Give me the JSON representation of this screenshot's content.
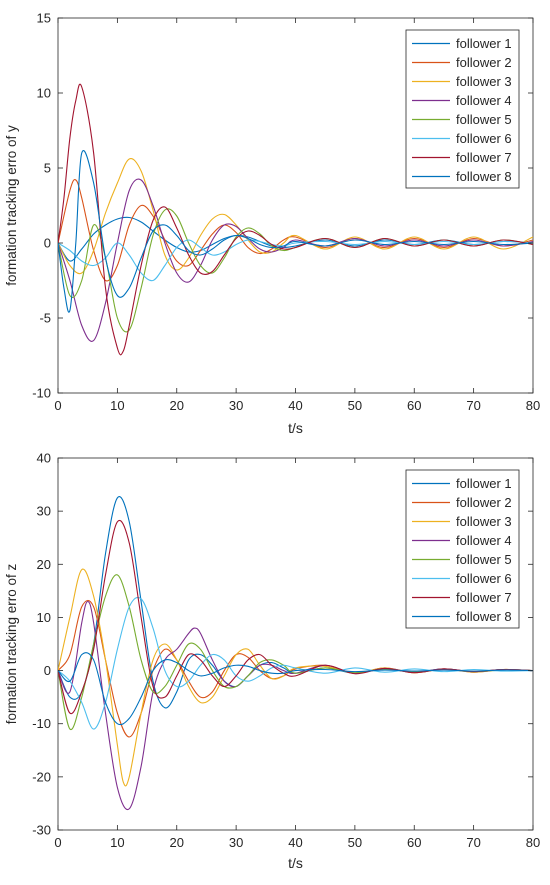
{
  "chart_data": [
    {
      "type": "line",
      "title": "",
      "xlabel": "t/s",
      "ylabel": "formation tracking erro of y",
      "xlim": [
        0,
        80
      ],
      "ylim": [
        -10,
        15
      ],
      "xticks": [
        0,
        10,
        20,
        30,
        40,
        50,
        60,
        70,
        80
      ],
      "yticks": [
        -10,
        -5,
        0,
        5,
        10,
        15
      ],
      "grid": false,
      "legend_position": "top-right",
      "series": [
        {
          "name": "follower 1",
          "color": "#0072BD",
          "x": [
            0,
            2,
            4,
            6,
            8,
            10,
            12,
            14,
            16,
            18,
            20,
            22,
            24,
            26,
            28,
            30,
            32,
            34,
            36,
            38,
            40,
            45,
            50,
            55,
            60,
            65,
            70,
            75,
            80
          ],
          "y": [
            0,
            -1.2,
            -0.4,
            0.6,
            1.2,
            1.6,
            1.7,
            1.4,
            0.8,
            0.2,
            -0.3,
            -0.6,
            -0.5,
            -0.1,
            0.3,
            0.5,
            0.4,
            0.1,
            -0.2,
            -0.3,
            -0.2,
            0.2,
            -0.2,
            0.2,
            -0.1,
            0.2,
            -0.1,
            0.1,
            0
          ]
        },
        {
          "name": "follower 2",
          "color": "#D95319",
          "x": [
            0,
            2,
            3,
            4,
            6,
            8,
            10,
            12,
            14,
            16,
            18,
            20,
            22,
            24,
            26,
            28,
            30,
            32,
            34,
            36,
            38,
            40,
            45,
            50,
            55,
            60,
            65,
            70,
            75,
            80
          ],
          "y": [
            0,
            3.5,
            4.2,
            3,
            -0.5,
            -2.5,
            -1.5,
            1.2,
            2.5,
            1.8,
            0.2,
            -1.2,
            -1.5,
            -0.5,
            0.6,
            1.2,
            0.7,
            -0.3,
            -0.7,
            -0.4,
            0.2,
            0.4,
            -0.3,
            0.3,
            -0.3,
            0.3,
            -0.3,
            0.3,
            -0.2,
            0.2
          ]
        },
        {
          "name": "follower 3",
          "color": "#EDB120",
          "x": [
            0,
            2,
            4,
            6,
            8,
            10,
            12,
            14,
            16,
            18,
            20,
            22,
            24,
            26,
            28,
            30,
            32,
            34,
            36,
            38,
            40,
            45,
            50,
            55,
            60,
            65,
            70,
            75,
            80
          ],
          "y": [
            0,
            -1.5,
            -2,
            -0.5,
            2,
            4,
            5.6,
            4.8,
            2.2,
            -0.8,
            -1.8,
            -1,
            0.5,
            1.6,
            1.9,
            1.2,
            0.2,
            -0.6,
            -0.6,
            0,
            0.5,
            -0.4,
            0.4,
            -0.4,
            0.4,
            -0.4,
            0.4,
            -0.4,
            0.4
          ]
        },
        {
          "name": "follower 4",
          "color": "#7E2F8E",
          "x": [
            0,
            2,
            4,
            6,
            8,
            10,
            12,
            14,
            16,
            18,
            20,
            22,
            24,
            26,
            28,
            30,
            32,
            34,
            36,
            38,
            40,
            45,
            50,
            55,
            60,
            65,
            70,
            75,
            80
          ],
          "y": [
            0,
            -2.5,
            -5.5,
            -6.5,
            -4,
            0,
            3.5,
            4.2,
            2.5,
            0,
            -2,
            -2.6,
            -1.5,
            0.2,
            1.2,
            1.1,
            0.3,
            -0.4,
            -0.6,
            -0.3,
            0.2,
            -0.2,
            0.3,
            -0.2,
            0.2,
            -0.2,
            0.2,
            -0.2,
            0.1
          ]
        },
        {
          "name": "follower 5",
          "color": "#77AC30",
          "x": [
            0,
            2,
            4,
            6,
            8,
            10,
            12,
            14,
            16,
            18,
            20,
            22,
            24,
            26,
            28,
            30,
            32,
            34,
            36,
            38,
            40,
            45,
            50,
            55,
            60,
            65,
            70,
            75,
            80
          ],
          "y": [
            0,
            -3.5,
            -2.5,
            1.2,
            -1,
            -5,
            -5.8,
            -3,
            0.5,
            2.2,
            1.8,
            0,
            -1.5,
            -2,
            -1,
            0.4,
            1,
            0.6,
            -0.2,
            -0.5,
            -0.3,
            0.3,
            -0.3,
            0.3,
            -0.2,
            0.2,
            -0.2,
            0.2,
            -0.1
          ]
        },
        {
          "name": "follower 6",
          "color": "#4DBEEE",
          "x": [
            0,
            2,
            4,
            6,
            8,
            10,
            12,
            14,
            16,
            18,
            20,
            22,
            24,
            26,
            28,
            30,
            32,
            34,
            36,
            38,
            40,
            45,
            50,
            55,
            60,
            65,
            70,
            75,
            80
          ],
          "y": [
            0,
            -0.5,
            -1.2,
            -1.5,
            -1,
            0,
            -0.8,
            -2,
            -2.5,
            -1.5,
            -0.3,
            0.2,
            -0.3,
            -0.8,
            -0.6,
            -0.1,
            0.2,
            0.1,
            -0.1,
            -0.2,
            0,
            0.1,
            -0.1,
            0.1,
            -0.1,
            0.1,
            -0.1,
            0.1,
            0
          ]
        },
        {
          "name": "follower 7",
          "color": "#A2142F",
          "x": [
            0,
            1,
            2,
            3,
            4,
            6,
            8,
            10,
            11,
            12,
            14,
            16,
            18,
            20,
            22,
            24,
            26,
            28,
            30,
            32,
            34,
            36,
            38,
            40,
            45,
            50,
            55,
            60,
            65,
            70,
            75,
            80
          ],
          "y": [
            0,
            3,
            7,
            9.5,
            10.4,
            6,
            -3,
            -7,
            -7.2,
            -5.5,
            -1.5,
            1.5,
            2.4,
            1,
            -0.8,
            -2,
            -1.9,
            -0.8,
            0.3,
            0.8,
            0.5,
            -0.1,
            -0.4,
            -0.3,
            0.3,
            -0.3,
            0.3,
            -0.2,
            0.2,
            -0.2,
            0.2,
            -0.1
          ]
        },
        {
          "name": "follower 8",
          "color": "#0072BD",
          "x": [
            0,
            1,
            2,
            3,
            4,
            6,
            8,
            10,
            12,
            14,
            16,
            18,
            20,
            22,
            24,
            26,
            28,
            30,
            32,
            34,
            36,
            38,
            40,
            45,
            50,
            55,
            60,
            65,
            70,
            75,
            80
          ],
          "y": [
            0,
            -3,
            -4.5,
            0,
            6,
            4,
            -1,
            -3.5,
            -3,
            -1,
            0.8,
            1.2,
            0.5,
            -0.5,
            -0.8,
            -0.4,
            0.2,
            0.5,
            0.3,
            -0.1,
            -0.3,
            -0.2,
            0.1,
            -0.2,
            0.2,
            -0.1,
            0.1,
            -0.1,
            0.1,
            -0.1,
            0
          ]
        }
      ]
    },
    {
      "type": "line",
      "title": "",
      "xlabel": "t/s",
      "ylabel": "formation tracking erro of z",
      "xlim": [
        0,
        80
      ],
      "ylim": [
        -30,
        40
      ],
      "xticks": [
        0,
        10,
        20,
        30,
        40,
        50,
        60,
        70,
        80
      ],
      "yticks": [
        -30,
        -20,
        -10,
        0,
        10,
        20,
        30,
        40
      ],
      "grid": false,
      "legend_position": "top-right",
      "series": [
        {
          "name": "follower 1",
          "color": "#0072BD",
          "x": [
            0,
            2,
            4,
            6,
            8,
            10,
            12,
            14,
            16,
            18,
            20,
            22,
            24,
            26,
            28,
            30,
            32,
            34,
            36,
            38,
            40,
            45,
            50,
            55,
            60,
            65,
            70,
            75,
            80
          ],
          "y": [
            0,
            -5,
            -4,
            5,
            22,
            32.5,
            28,
            13,
            -2,
            -7,
            -4,
            2,
            3,
            1,
            -2,
            -3,
            -1,
            1,
            1.5,
            0.5,
            -0.5,
            0.5,
            -0.5,
            0.3,
            -0.3,
            0.3,
            -0.2,
            0.2,
            0
          ]
        },
        {
          "name": "follower 2",
          "color": "#D95319",
          "x": [
            0,
            2,
            4,
            6,
            8,
            10,
            12,
            14,
            16,
            18,
            20,
            22,
            24,
            26,
            28,
            30,
            32,
            34,
            36,
            38,
            40,
            45,
            50,
            55,
            60,
            65,
            70,
            75,
            80
          ],
          "y": [
            0,
            3,
            12,
            12,
            2,
            -8,
            -12.5,
            -8,
            0,
            4,
            2,
            -2,
            -5,
            -4,
            0,
            3,
            2.5,
            0,
            -1.5,
            -1,
            0.3,
            1,
            -0.5,
            0.5,
            -0.4,
            0.3,
            -0.3,
            0.2,
            0
          ]
        },
        {
          "name": "follower 3",
          "color": "#EDB120",
          "x": [
            0,
            2,
            4,
            6,
            8,
            10,
            11,
            12,
            14,
            16,
            18,
            20,
            22,
            24,
            26,
            28,
            30,
            32,
            34,
            36,
            38,
            40,
            45,
            50,
            55,
            60,
            65,
            70,
            75,
            80
          ],
          "y": [
            0,
            10,
            19,
            14,
            2,
            -14,
            -21,
            -20,
            -8,
            2,
            5,
            2,
            -3,
            -6,
            -5,
            -1,
            3,
            4,
            1,
            -1.5,
            -1,
            0.5,
            0.8,
            -0.5,
            0.5,
            -0.4,
            0.3,
            -0.3,
            0.2,
            0
          ]
        },
        {
          "name": "follower 4",
          "color": "#7E2F8E",
          "x": [
            0,
            2,
            4,
            5,
            6,
            8,
            10,
            12,
            14,
            16,
            18,
            20,
            22,
            23,
            24,
            26,
            28,
            30,
            32,
            34,
            36,
            38,
            40,
            45,
            50,
            55,
            60,
            65,
            70,
            75,
            80
          ],
          "y": [
            0,
            -4,
            9,
            13,
            9,
            -8,
            -22,
            -26,
            -18,
            -4,
            2,
            4,
            7,
            8,
            7,
            2,
            -2,
            -3,
            -1,
            1,
            1,
            0,
            -0.5,
            1,
            -0.5,
            0.4,
            -0.3,
            0.3,
            -0.2,
            0.2,
            0
          ]
        },
        {
          "name": "follower 5",
          "color": "#77AC30",
          "x": [
            0,
            2,
            4,
            6,
            8,
            10,
            12,
            14,
            16,
            18,
            20,
            22,
            24,
            26,
            28,
            30,
            32,
            34,
            36,
            38,
            40,
            45,
            50,
            55,
            60,
            65,
            70,
            75,
            80
          ],
          "y": [
            0,
            -11,
            -5,
            5,
            14,
            18,
            12,
            2,
            -4,
            -3,
            1,
            5,
            4,
            0,
            -3,
            -3,
            -1,
            1.5,
            2,
            1,
            -0.5,
            0.5,
            -0.4,
            0.3,
            -0.3,
            0.2,
            -0.2,
            0.1,
            0
          ]
        },
        {
          "name": "follower 6",
          "color": "#4DBEEE",
          "x": [
            0,
            2,
            4,
            6,
            8,
            10,
            12,
            14,
            16,
            18,
            20,
            22,
            24,
            26,
            28,
            30,
            32,
            34,
            36,
            38,
            40,
            45,
            50,
            55,
            60,
            65,
            70,
            75,
            80
          ],
          "y": [
            0,
            -2,
            -6,
            -11,
            -6,
            4,
            12,
            13.5,
            8,
            0,
            -3,
            -2,
            1,
            3,
            2,
            -1,
            -2,
            -1,
            0.5,
            1,
            0.5,
            -0.5,
            0.5,
            -0.3,
            0.3,
            -0.2,
            0.2,
            -0.1,
            0
          ]
        },
        {
          "name": "follower 7",
          "color": "#A2142F",
          "x": [
            0,
            2,
            4,
            6,
            8,
            10,
            12,
            14,
            16,
            18,
            20,
            22,
            24,
            26,
            28,
            30,
            32,
            34,
            36,
            38,
            40,
            45,
            50,
            55,
            60,
            65,
            70,
            75,
            80
          ],
          "y": [
            0,
            -8,
            -4,
            4,
            18,
            28,
            24,
            10,
            -3,
            -5,
            -1,
            3,
            2,
            -1,
            -3,
            -1,
            2,
            3,
            1,
            -0.5,
            -1,
            1,
            -0.6,
            0.4,
            -0.4,
            0.3,
            -0.2,
            0.2,
            0
          ]
        },
        {
          "name": "follower 8",
          "color": "#0072BD",
          "x": [
            0,
            2,
            4,
            6,
            8,
            10,
            12,
            14,
            16,
            18,
            20,
            22,
            24,
            26,
            28,
            30,
            32,
            34,
            36,
            38,
            40,
            45,
            50,
            55,
            60,
            65,
            70,
            75,
            80
          ],
          "y": [
            0,
            -2,
            3,
            2,
            -6,
            -10,
            -9,
            -5,
            0,
            2,
            1.5,
            0,
            -1,
            -0.5,
            0.5,
            1,
            0.8,
            0,
            -0.5,
            -0.5,
            0,
            0.2,
            -0.2,
            0.1,
            -0.1,
            0.1,
            -0.1,
            0.1,
            0
          ]
        }
      ]
    }
  ]
}
